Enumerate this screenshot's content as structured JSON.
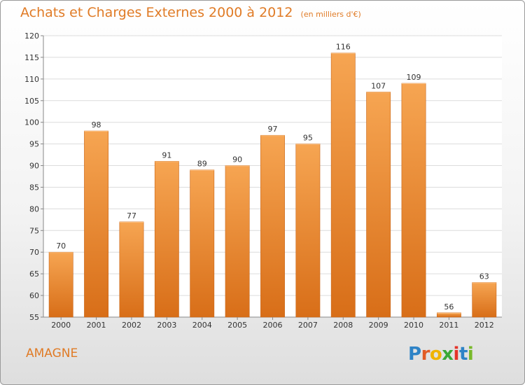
{
  "header": {
    "title": "Achats et Charges Externes 2000 à 2012",
    "subtitle": "(en milliers d'€)"
  },
  "footer": {
    "commune": "AMAGNE",
    "logo": "Proxiti"
  },
  "colors": {
    "accent": "#e07b26",
    "bar_top": "#f6a552",
    "bar_bottom": "#d86e18",
    "logo_letters": [
      "#2e83c6",
      "#e25b25",
      "#f0b400",
      "#3aa936",
      "#e4342a",
      "#2e83c6",
      "#78b92a"
    ]
  },
  "chart_data": {
    "type": "bar",
    "categories": [
      "2000",
      "2001",
      "2002",
      "2003",
      "2004",
      "2005",
      "2006",
      "2007",
      "2008",
      "2009",
      "2010",
      "2011",
      "2012"
    ],
    "values": [
      70,
      98,
      77,
      91,
      89,
      90,
      97,
      95,
      116,
      107,
      109,
      56,
      63
    ],
    "title": "Achats et Charges Externes 2000 à 2012",
    "subtitle": "(en milliers d'€)",
    "xlabel": "",
    "ylabel": "",
    "ylim": [
      55,
      120
    ],
    "yticks": [
      55,
      60,
      65,
      70,
      75,
      80,
      85,
      90,
      95,
      100,
      105,
      110,
      115,
      120
    ],
    "grid": true,
    "legend": "none"
  }
}
